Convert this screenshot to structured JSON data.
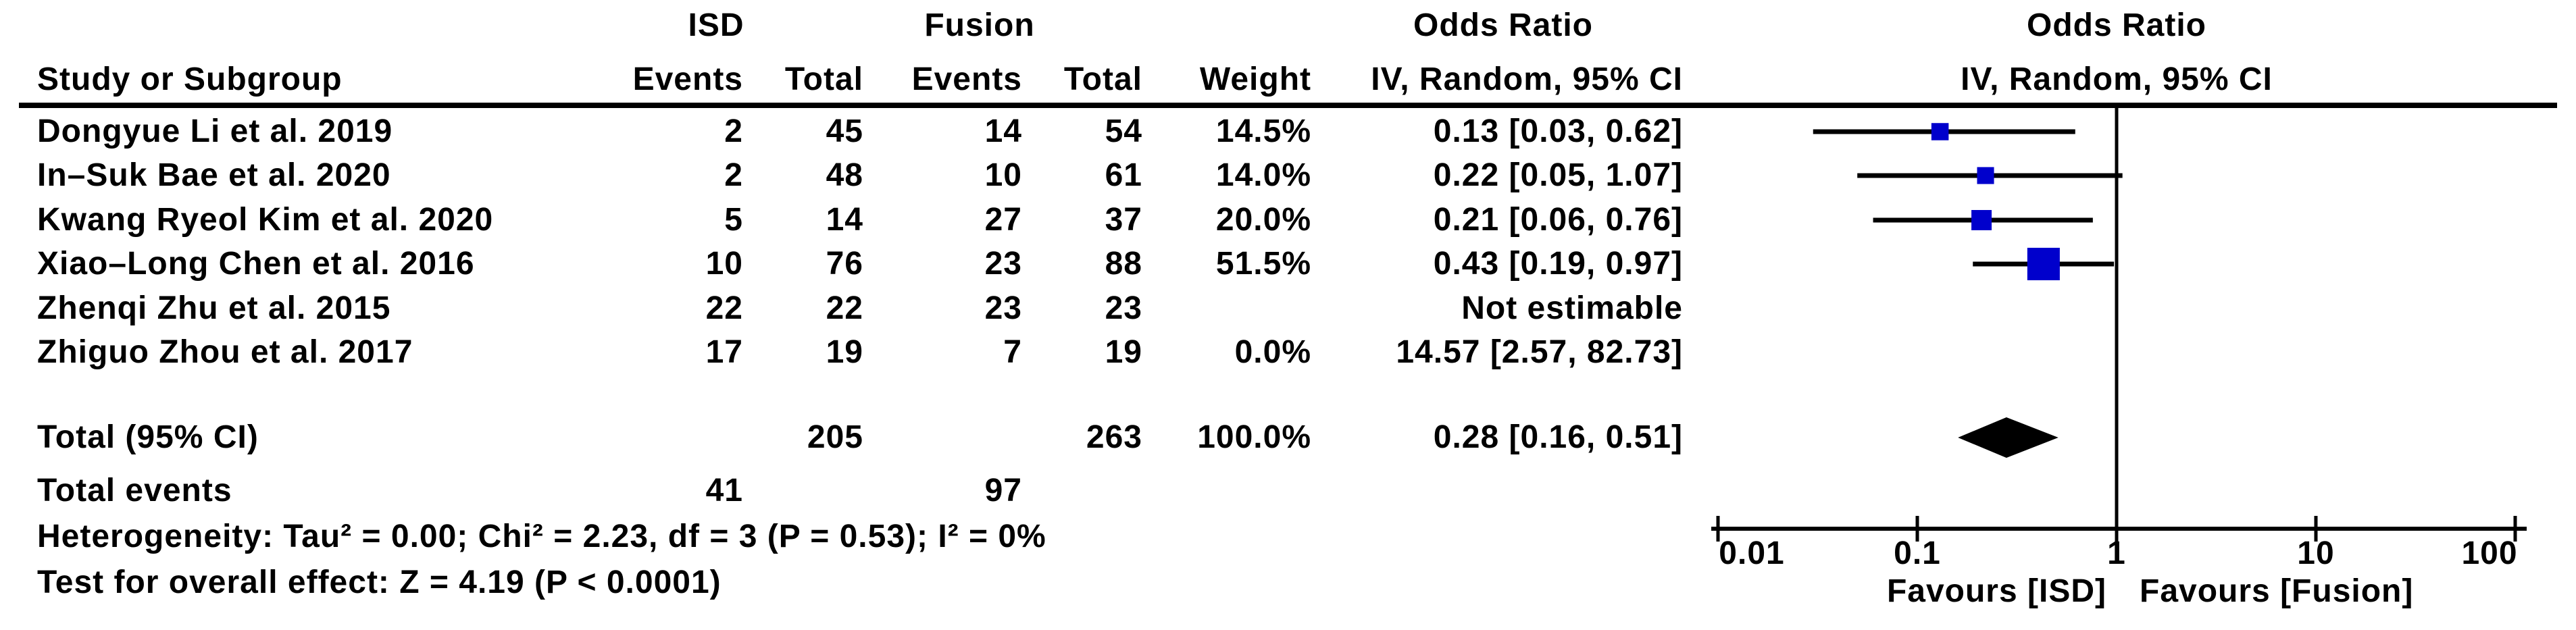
{
  "header": {
    "study_col": "Study or Subgroup",
    "group1": "ISD",
    "group2": "Fusion",
    "events": "Events",
    "total": "Total",
    "weight": "Weight",
    "or_label": "Odds Ratio",
    "method_label": "IV, Random, 95% CI"
  },
  "footer": {
    "heterogeneity": "Heterogeneity: Tau² = 0.00; Chi² = 2.23, df = 3 (P = 0.53); I² = 0%",
    "overall_effect": "Test for overall effect: Z = 4.19 (P < 0.0001)"
  },
  "colors": {
    "marker_blue": "#0000CC",
    "diamond_black": "#000000",
    "line_black": "#000000",
    "text": "#000000",
    "background": "#FFFFFF"
  },
  "chart_data": {
    "type": "scatter",
    "subtype": "forest-plot-meta-analysis",
    "effect_measure": "Odds Ratio",
    "model": "IV, Random, 95% CI",
    "x_scale": "log10",
    "x_range": [
      0.01,
      100
    ],
    "x_ticks": [
      0.01,
      0.1,
      1,
      10,
      100
    ],
    "x_tick_labels": [
      "0.01",
      "0.1",
      "1",
      "10",
      "100"
    ],
    "favours_left": "Favours [ISD]",
    "favours_right": "Favours [Fusion]",
    "grid": false,
    "studies": [
      {
        "name": "Dongyue Li et al. 2019",
        "isd_events": "2",
        "isd_total": "45",
        "fusion_events": "14",
        "fusion_total": "54",
        "weight": "14.5%",
        "or_ci": "0.13 [0.03, 0.62]",
        "or": 0.13,
        "ci_low": 0.03,
        "ci_high": 0.62,
        "weight_pct": 14.5,
        "plotted": true
      },
      {
        "name": "In–Suk Bae et al. 2020",
        "isd_events": "2",
        "isd_total": "48",
        "fusion_events": "10",
        "fusion_total": "61",
        "weight": "14.0%",
        "or_ci": "0.22 [0.05, 1.07]",
        "or": 0.22,
        "ci_low": 0.05,
        "ci_high": 1.07,
        "weight_pct": 14.0,
        "plotted": true
      },
      {
        "name": "Kwang Ryeol Kim et al. 2020",
        "isd_events": "5",
        "isd_total": "14",
        "fusion_events": "27",
        "fusion_total": "37",
        "weight": "20.0%",
        "or_ci": "0.21 [0.06, 0.76]",
        "or": 0.21,
        "ci_low": 0.06,
        "ci_high": 0.76,
        "weight_pct": 20.0,
        "plotted": true
      },
      {
        "name": "Xiao–Long Chen et al. 2016",
        "isd_events": "10",
        "isd_total": "76",
        "fusion_events": "23",
        "fusion_total": "88",
        "weight": "51.5%",
        "or_ci": "0.43 [0.19, 0.97]",
        "or": 0.43,
        "ci_low": 0.19,
        "ci_high": 0.97,
        "weight_pct": 51.5,
        "plotted": true
      },
      {
        "name": "Zhenqi Zhu et al. 2015",
        "isd_events": "22",
        "isd_total": "22",
        "fusion_events": "23",
        "fusion_total": "23",
        "weight": "",
        "or_ci": "Not estimable",
        "or": null,
        "ci_low": null,
        "ci_high": null,
        "weight_pct": null,
        "plotted": false
      },
      {
        "name": "Zhiguo Zhou et al. 2017",
        "isd_events": "17",
        "isd_total": "19",
        "fusion_events": "7",
        "fusion_total": "19",
        "weight": "0.0%",
        "or_ci": "14.57 [2.57, 82.73]",
        "or": 14.57,
        "ci_low": 2.57,
        "ci_high": 82.73,
        "weight_pct": 0.0,
        "plotted": false
      }
    ],
    "total": {
      "label": "Total (95% CI)",
      "isd_total": "205",
      "fusion_total": "263",
      "weight": "100.0%",
      "or_ci": "0.28 [0.16, 0.51]",
      "or": 0.28,
      "ci_low": 0.16,
      "ci_high": 0.51
    },
    "total_events": {
      "label": "Total events",
      "isd": "41",
      "fusion": "97"
    }
  }
}
